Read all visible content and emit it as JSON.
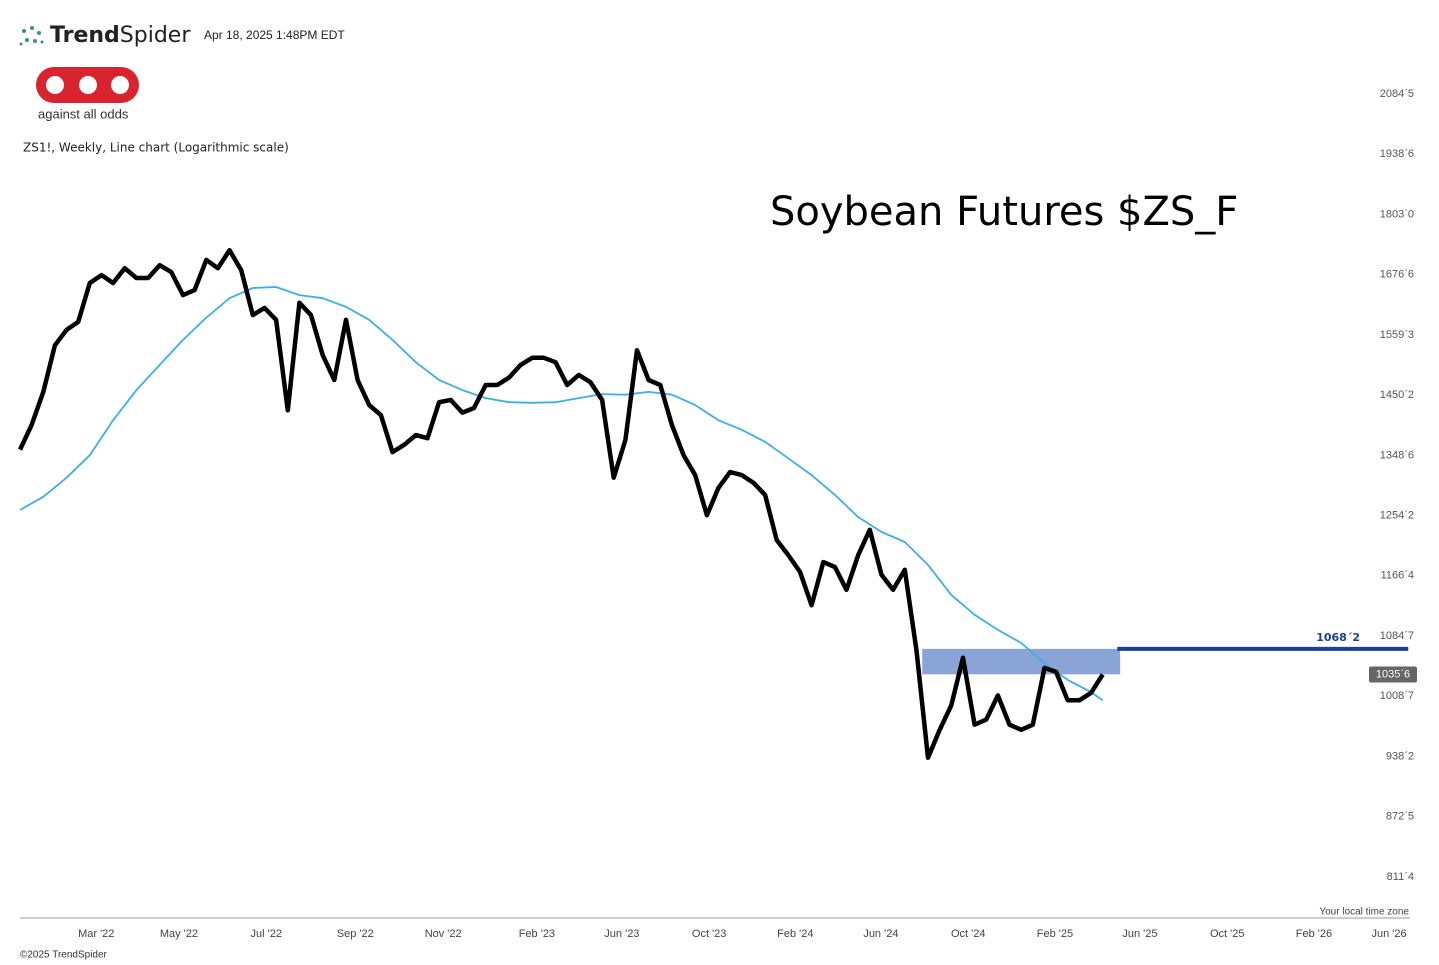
{
  "header": {
    "brand_bold": "Trend",
    "brand_light": "Spider",
    "timestamp": "Apr 18, 2025 1:48PM EDT",
    "logo_caption": "against all odds",
    "copyright": "©2025 TrendSpider"
  },
  "chart_data": {
    "type": "line",
    "title": "Soybean Futures $ZS_F",
    "subtitle": "ZS1!, Weekly, Line chart (Logarithmic scale)",
    "x_note": "Your local time zone",
    "log_scale": true,
    "grid": false,
    "xlim": [
      0,
      238.8
    ],
    "ylim": [
      772.4,
      2279
    ],
    "xticks": [
      {
        "value": 13.1,
        "label": "Mar '22"
      },
      {
        "value": 27.3,
        "label": "May '22"
      },
      {
        "value": 42.3,
        "label": "Jul '22"
      },
      {
        "value": 57.6,
        "label": "Sep '22"
      },
      {
        "value": 72.7,
        "label": "Nov '22"
      },
      {
        "value": 88.8,
        "label": "Feb '23"
      },
      {
        "value": 103.4,
        "label": "Jun '23"
      },
      {
        "value": 118.4,
        "label": "Oct '23"
      },
      {
        "value": 133.2,
        "label": "Feb '24"
      },
      {
        "value": 147.9,
        "label": "Jun '24"
      },
      {
        "value": 162.9,
        "label": "Oct '24"
      },
      {
        "value": 177.8,
        "label": "Feb '25"
      },
      {
        "value": 192.4,
        "label": "Jun '25"
      },
      {
        "value": 207.4,
        "label": "Oct '25"
      },
      {
        "value": 222.3,
        "label": "Feb '26"
      },
      {
        "value": 235.2,
        "label": "Jun '26"
      }
    ],
    "yticks": [
      {
        "value": 2084.625,
        "label": "2084ˊ5"
      },
      {
        "value": 1938.75,
        "label": "1938ˊ6"
      },
      {
        "value": 1803,
        "label": "1803ˊ0"
      },
      {
        "value": 1676.75,
        "label": "1676ˊ6"
      },
      {
        "value": 1559.375,
        "label": "1559ˊ3"
      },
      {
        "value": 1450.25,
        "label": "1450ˊ2"
      },
      {
        "value": 1348.75,
        "label": "1348ˊ6"
      },
      {
        "value": 1254.25,
        "label": "1254ˊ2"
      },
      {
        "value": 1166.5,
        "label": "1166ˊ4"
      },
      {
        "value": 1084.875,
        "label": "1084ˊ7"
      },
      {
        "value": 1008.875,
        "label": "1008ˊ7"
      },
      {
        "value": 938.25,
        "label": "938ˊ2"
      },
      {
        "value": 872.625,
        "label": "872ˊ5"
      },
      {
        "value": 811.5,
        "label": "811ˊ4"
      }
    ],
    "series": [
      {
        "color": "#000000",
        "x": [
          0,
          2,
          4,
          6,
          8,
          10,
          12,
          14,
          16,
          18,
          20,
          22,
          24,
          26,
          28,
          30,
          32,
          34,
          36,
          38,
          40,
          42,
          44,
          46,
          48,
          50,
          52,
          54,
          56,
          58,
          60,
          62,
          64,
          66,
          68,
          70,
          72,
          74,
          76,
          78,
          80,
          82,
          84,
          86,
          88,
          90,
          92,
          94,
          96,
          98,
          100,
          102,
          104,
          106,
          108,
          110,
          112,
          114,
          116,
          118,
          120,
          122,
          124,
          126,
          128,
          130,
          132,
          134,
          136,
          138,
          140,
          142,
          144,
          146,
          148,
          150,
          152,
          154,
          156,
          158,
          160,
          162,
          164,
          166,
          168,
          170,
          172,
          174,
          176,
          178,
          180,
          182,
          184,
          186
        ],
        "values": [
          1358,
          1399,
          1456,
          1540,
          1569,
          1584,
          1660,
          1676,
          1660,
          1690,
          1670,
          1670,
          1696,
          1682,
          1636,
          1646,
          1707,
          1690,
          1727,
          1686,
          1597,
          1611,
          1588,
          1424,
          1621,
          1597,
          1522,
          1477,
          1588,
          1477,
          1433,
          1416,
          1354,
          1366,
          1382,
          1377,
          1438,
          1442,
          1420,
          1428,
          1468,
          1468,
          1481,
          1504,
          1517,
          1517,
          1509,
          1468,
          1486,
          1473,
          1442,
          1313,
          1374,
          1531,
          1477,
          1468,
          1399,
          1349,
          1317,
          1255,
          1297,
          1322,
          1317,
          1305,
          1286,
          1218,
          1196,
          1172,
          1126,
          1186,
          1179,
          1147,
          1196,
          1233,
          1168,
          1147,
          1175,
          1067,
          937,
          969,
          998,
          1057,
          975,
          981,
          1010,
          975,
          969,
          975,
          1044,
          1039,
          1004,
          1004,
          1013,
          1035.75
        ]
      },
      {
        "color": "#3bb0e8",
        "x": [
          0,
          4,
          8,
          12,
          16,
          20,
          24,
          28,
          32,
          36,
          40,
          44,
          48,
          52,
          56,
          60,
          64,
          68,
          72,
          76,
          80,
          84,
          88,
          92,
          96,
          100,
          104,
          108,
          112,
          116,
          120,
          124,
          128,
          132,
          136,
          140,
          144,
          148,
          152,
          156,
          160,
          164,
          168,
          172,
          176,
          180,
          184,
          186
        ],
        "values": [
          1263,
          1283,
          1313,
          1349,
          1407,
          1459,
          1504,
          1550,
          1592,
          1630,
          1650,
          1652,
          1636,
          1630,
          1613,
          1588,
          1550,
          1509,
          1477,
          1459,
          1445,
          1438,
          1437,
          1438,
          1445,
          1452,
          1451,
          1456,
          1451,
          1433,
          1407,
          1391,
          1371,
          1344,
          1317,
          1286,
          1252,
          1230,
          1215,
          1182,
          1140,
          1113,
          1093,
          1076,
          1050,
          1029,
          1014,
          1004
        ]
      }
    ],
    "zone": {
      "low": 1036,
      "high": 1068.25,
      "from": 155,
      "to": 189,
      "color": "#8ba4d6"
    },
    "resistance": {
      "value": 1068.25,
      "label": "1068ˊ2",
      "from": 188.5,
      "to": 238.5,
      "color": "#1a3f9a"
    },
    "last_price": {
      "value": 1035.75,
      "label": "1035ˊ6"
    }
  }
}
